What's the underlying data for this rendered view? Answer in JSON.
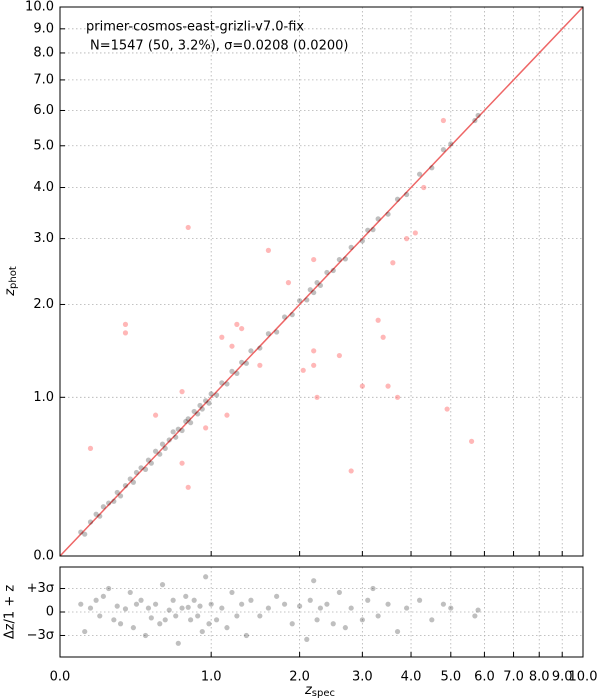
{
  "chart_data": [
    {
      "type": "scatter",
      "scale": "log1p",
      "annotation": [
        "primer-cosmos-east-grizli-v7.0-fix",
        "N=1547 (50,  3.2%), σ=0.0208 (0.0200)"
      ],
      "ylabel": {
        "text": "z",
        "sub": "phot"
      },
      "xlim": [
        0,
        10
      ],
      "ylim": [
        0,
        10
      ],
      "yticks": [
        {
          "value": 0,
          "label": "0.0"
        },
        {
          "value": 1,
          "label": "1.0"
        },
        {
          "value": 2,
          "label": "2.0"
        },
        {
          "value": 3,
          "label": "3.0"
        },
        {
          "value": 4,
          "label": "4.0"
        },
        {
          "value": 5,
          "label": "5.0"
        },
        {
          "value": 6,
          "label": "6.0"
        },
        {
          "value": 7,
          "label": "7.0"
        },
        {
          "value": 8,
          "label": "8.0"
        },
        {
          "value": 9,
          "label": "9.0"
        },
        {
          "value": 10,
          "label": "10.0"
        }
      ],
      "grid": true,
      "reference_line_color": "#ee6666",
      "series": [
        {
          "color": "#000000",
          "opacity": 0.25,
          "x": [
            0.1,
            0.12,
            0.15,
            0.18,
            0.2,
            0.22,
            0.25,
            0.28,
            0.3,
            0.32,
            0.35,
            0.38,
            0.4,
            0.42,
            0.45,
            0.48,
            0.5,
            0.52,
            0.55,
            0.58,
            0.6,
            0.62,
            0.65,
            0.68,
            0.7,
            0.72,
            0.75,
            0.78,
            0.8,
            0.82,
            0.85,
            0.88,
            0.9,
            0.92,
            0.95,
            0.98,
            1.0,
            1.05,
            1.1,
            1.15,
            1.2,
            1.25,
            1.3,
            1.35,
            1.4,
            1.5,
            1.6,
            1.7,
            1.8,
            1.9,
            2.0,
            2.1,
            2.15,
            2.2,
            2.25,
            2.3,
            2.4,
            2.5,
            2.6,
            2.7,
            2.8,
            3.0,
            3.1,
            3.2,
            3.3,
            3.5,
            3.7,
            3.9,
            4.2,
            4.5,
            4.8,
            5.0,
            5.7,
            5.8
          ],
          "y": [
            0.11,
            0.1,
            0.16,
            0.2,
            0.19,
            0.24,
            0.26,
            0.27,
            0.32,
            0.3,
            0.36,
            0.4,
            0.38,
            0.44,
            0.47,
            0.46,
            0.52,
            0.5,
            0.58,
            0.56,
            0.63,
            0.6,
            0.66,
            0.72,
            0.68,
            0.74,
            0.73,
            0.8,
            0.82,
            0.79,
            0.88,
            0.86,
            0.93,
            0.9,
            0.97,
            0.95,
            1.03,
            1.02,
            1.13,
            1.12,
            1.24,
            1.22,
            1.33,
            1.32,
            1.45,
            1.48,
            1.64,
            1.66,
            1.84,
            1.87,
            2.05,
            2.06,
            2.2,
            2.16,
            2.3,
            2.26,
            2.45,
            2.48,
            2.65,
            2.66,
            2.85,
            2.96,
            3.15,
            3.16,
            3.36,
            3.45,
            3.75,
            3.85,
            4.3,
            4.45,
            4.9,
            5.05,
            5.7,
            5.85
          ]
        },
        {
          "color": "#ff7070",
          "opacity": 0.5,
          "x": [
            0.15,
            0.35,
            0.35,
            0.55,
            0.75,
            0.8,
            0.75,
            0.95,
            1.2,
            1.25,
            1.3,
            1.1,
            1.15,
            1.5,
            1.85,
            2.05,
            2.2,
            2.2,
            2.2,
            2.25,
            2.6,
            2.8,
            3.0,
            3.3,
            3.4,
            3.5,
            3.7,
            3.6,
            3.9,
            4.1,
            4.3,
            4.8,
            4.9,
            5.6,
            0.8,
            1.6
          ],
          "y": [
            0.6,
            1.65,
            1.75,
            0.85,
            1.05,
            0.35,
            0.5,
            0.75,
            1.5,
            1.75,
            1.7,
            1.6,
            0.85,
            1.3,
            2.3,
            1.25,
            2.65,
            1.45,
            1.3,
            1.0,
            1.4,
            0.45,
            1.1,
            1.8,
            1.6,
            1.1,
            1.0,
            2.6,
            3.0,
            3.1,
            4.0,
            5.7,
            0.9,
            0.65,
            3.2,
            2.8
          ]
        }
      ]
    },
    {
      "type": "scatter",
      "scale": "log1p",
      "ylabel": "Δz/1 + z",
      "xlabel": {
        "text": "z",
        "sub": "spec"
      },
      "xlim": [
        0,
        10
      ],
      "ylim": [
        -0.115,
        0.115
      ],
      "xticks": [
        {
          "value": 0,
          "label": "0.0"
        },
        {
          "value": 1,
          "label": "1.0"
        },
        {
          "value": 2,
          "label": "2.0"
        },
        {
          "value": 3,
          "label": "3.0"
        },
        {
          "value": 4,
          "label": "4.0"
        },
        {
          "value": 5,
          "label": "5.0"
        },
        {
          "value": 6,
          "label": "6.0"
        },
        {
          "value": 7,
          "label": "7.0"
        },
        {
          "value": 8,
          "label": "8.0"
        },
        {
          "value": 9,
          "label": "9.0"
        },
        {
          "value": 10,
          "label": "10.0"
        }
      ],
      "yticks": [
        {
          "value": 0.06,
          "label": "+3σ"
        },
        0,
        {
          "value": -0.06,
          "label": "−3σ"
        }
      ],
      "grid": true,
      "series": [
        {
          "color": "#000000",
          "opacity": 0.25,
          "x": [
            0.1,
            0.12,
            0.15,
            0.18,
            0.2,
            0.22,
            0.25,
            0.28,
            0.3,
            0.32,
            0.35,
            0.38,
            0.4,
            0.42,
            0.45,
            0.48,
            0.5,
            0.52,
            0.55,
            0.58,
            0.6,
            0.62,
            0.65,
            0.68,
            0.7,
            0.72,
            0.75,
            0.78,
            0.8,
            0.82,
            0.85,
            0.88,
            0.9,
            0.92,
            0.95,
            0.98,
            1.0,
            1.05,
            1.1,
            1.15,
            1.2,
            1.25,
            1.3,
            1.35,
            1.4,
            1.5,
            1.6,
            1.7,
            1.8,
            1.9,
            2.0,
            2.1,
            2.15,
            2.2,
            2.25,
            2.3,
            2.4,
            2.5,
            2.6,
            2.7,
            2.8,
            3.0,
            3.1,
            3.2,
            3.3,
            3.5,
            3.7,
            3.9,
            4.2,
            4.5,
            4.8,
            5.0,
            5.7,
            5.8
          ],
          "y": [
            0.02,
            -0.05,
            0.01,
            0.03,
            -0.01,
            0.04,
            0.06,
            -0.02,
            0.015,
            -0.03,
            0.008,
            0.05,
            -0.04,
            0.02,
            0.03,
            -0.06,
            0.01,
            -0.015,
            0.02,
            -0.03,
            0.07,
            -0.02,
            0.005,
            0.03,
            -0.01,
            -0.08,
            0.01,
            0.04,
            0.012,
            -0.02,
            0.03,
            -0.01,
            0.015,
            -0.05,
            0.09,
            -0.03,
            0.02,
            -0.02,
            0.01,
            -0.04,
            0.05,
            -0.01,
            0.02,
            -0.06,
            0.03,
            -0.01,
            0.01,
            0.04,
            0.02,
            -0.03,
            0.015,
            -0.07,
            0.03,
            0.08,
            -0.02,
            0.01,
            0.02,
            -0.03,
            0.05,
            -0.04,
            0.01,
            -0.02,
            0.03,
            0.06,
            -0.01,
            0.02,
            -0.05,
            0.01,
            0.03,
            -0.02,
            0.02,
            0.01,
            -0.01,
            0.005
          ]
        }
      ]
    }
  ]
}
